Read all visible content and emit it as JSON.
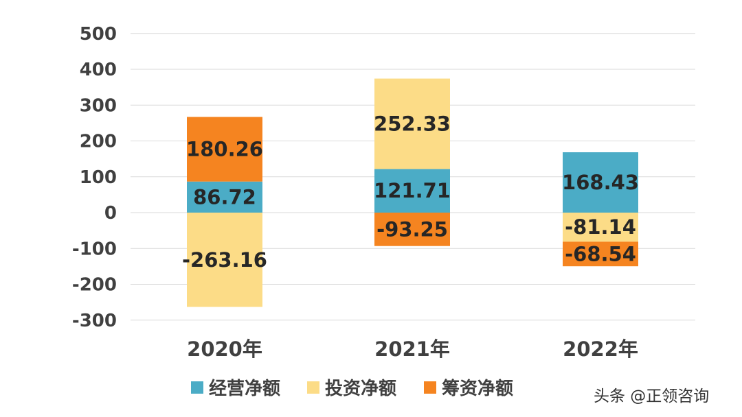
{
  "chart_data": {
    "type": "bar",
    "stacked": true,
    "categories": [
      "2020年",
      "2021年",
      "2022年"
    ],
    "series": [
      {
        "name": "经营净额",
        "color": "#4BACC6",
        "values": [
          86.72,
          121.71,
          168.43
        ]
      },
      {
        "name": "投资净额",
        "color": "#FCDC87",
        "values": [
          -263.16,
          252.33,
          -81.14
        ]
      },
      {
        "name": "筹资净额",
        "color": "#F58420",
        "values": [
          180.26,
          -93.25,
          -68.54
        ]
      }
    ],
    "data_labels": [
      [
        "86.72",
        "121.71",
        "168.43"
      ],
      [
        "-263.16",
        "252.33",
        "-81.14"
      ],
      [
        "180.26",
        "-93.25",
        "-68.54"
      ]
    ],
    "y_ticks": [
      500,
      400,
      300,
      200,
      100,
      0,
      -100,
      -200,
      -300
    ],
    "ylim": [
      -300,
      500
    ],
    "grid": true,
    "legend_position": "bottom",
    "title": "",
    "xlabel": "",
    "ylabel": ""
  },
  "watermark": {
    "text": "头条 @正领咨询"
  }
}
